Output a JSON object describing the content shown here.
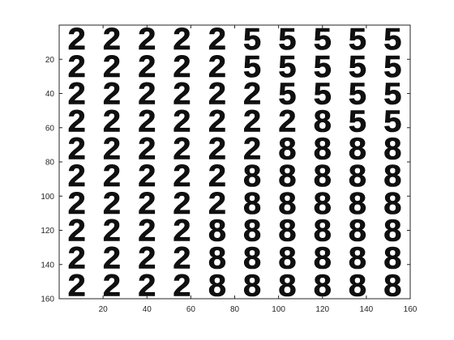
{
  "chart_data": {
    "type": "image",
    "xlim": [
      0,
      160
    ],
    "ylim": [
      0,
      160
    ],
    "y_reversed": true,
    "x_ticks": [
      20,
      40,
      60,
      80,
      100,
      120,
      140,
      160
    ],
    "y_ticks": [
      20,
      40,
      60,
      80,
      100,
      120,
      140,
      160
    ],
    "x_tick_labels": [
      "20",
      "40",
      "60",
      "80",
      "100",
      "120",
      "140",
      "160"
    ],
    "y_tick_labels": [
      "20",
      "40",
      "60",
      "80",
      "100",
      "120",
      "140",
      "160"
    ],
    "grid": false,
    "cell_size": 16,
    "rows": 10,
    "cols": 10,
    "pixel_color": "#000000",
    "background_color": "#ffffff",
    "digit_grid": [
      [
        "2",
        "2",
        "2",
        "2",
        "2",
        "5",
        "5",
        "5",
        "5",
        "5"
      ],
      [
        "2",
        "2",
        "2",
        "2",
        "2",
        "5",
        "5",
        "5",
        "5",
        "5"
      ],
      [
        "2",
        "2",
        "2",
        "2",
        "2",
        "2",
        "5",
        "5",
        "5",
        "5"
      ],
      [
        "2",
        "2",
        "2",
        "2",
        "2",
        "2",
        "2",
        "8",
        "5",
        "5"
      ],
      [
        "2",
        "2",
        "2",
        "2",
        "2",
        "2",
        "8",
        "8",
        "8",
        "8"
      ],
      [
        "2",
        "2",
        "2",
        "2",
        "2",
        "8",
        "8",
        "8",
        "8",
        "8"
      ],
      [
        "2",
        "2",
        "2",
        "2",
        "2",
        "8",
        "8",
        "8",
        "8",
        "8"
      ],
      [
        "2",
        "2",
        "2",
        "2",
        "8",
        "8",
        "8",
        "8",
        "8",
        "8"
      ],
      [
        "2",
        "2",
        "2",
        "2",
        "8",
        "8",
        "8",
        "8",
        "8",
        "8"
      ],
      [
        "2",
        "2",
        "2",
        "2",
        "8",
        "8",
        "8",
        "8",
        "8",
        "8"
      ]
    ]
  }
}
